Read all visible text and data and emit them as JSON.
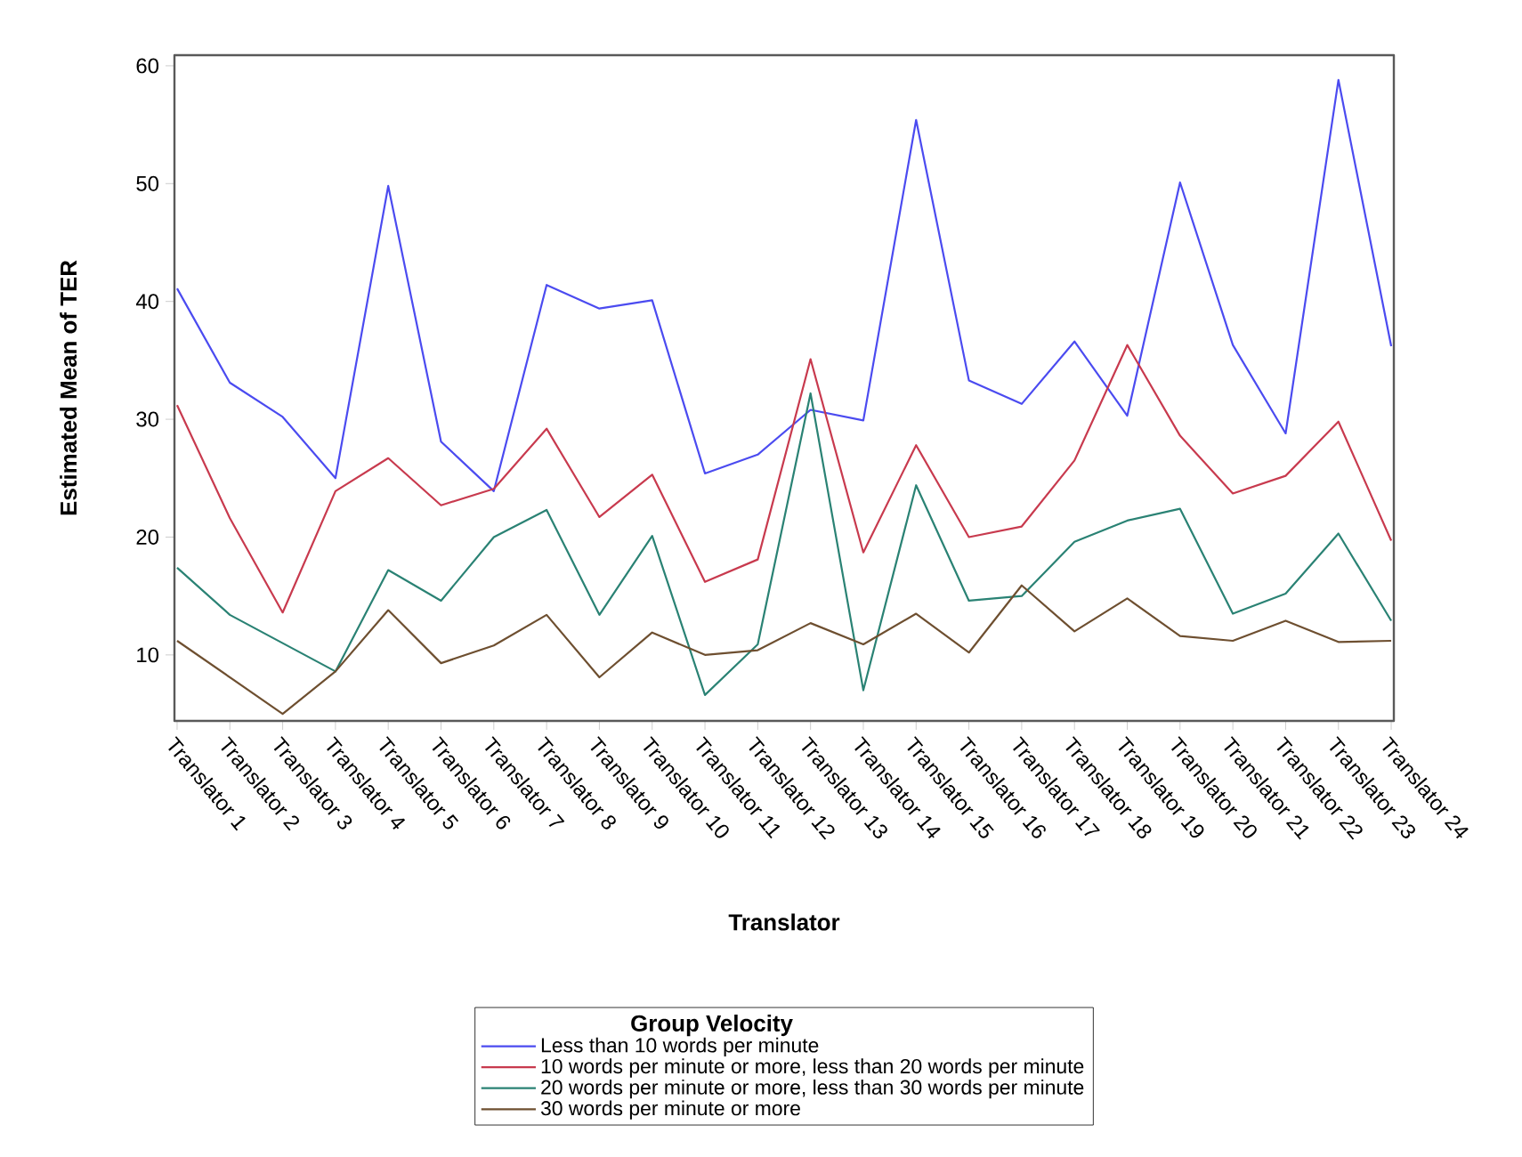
{
  "chart_data": {
    "type": "line",
    "xlabel": "Translator",
    "ylabel": "Estimated Mean of TER",
    "legend_title": "Group Velocity",
    "legend": "bottom",
    "grid": false,
    "marker": "none",
    "line_style": "solid",
    "categories": [
      "Translator 1",
      "Translator 2",
      "Translator 3",
      "Translator 4",
      "Translator 5",
      "Translator 6",
      "Translator 7",
      "Translator 8",
      "Translator 9",
      "Translator 10",
      "Translator 11",
      "Translator 12",
      "Translator 13",
      "Translator 14",
      "Translator 15",
      "Translator 16",
      "Translator 17",
      "Translator 18",
      "Translator 19",
      "Translator 20",
      "Translator 21",
      "Translator 22",
      "Translator 23",
      "Translator 24"
    ],
    "ylim": [
      4.4,
      60.9
    ],
    "yticks": [
      10,
      20,
      30,
      40,
      50,
      60
    ],
    "series": [
      {
        "name": "Less than 10 words per minute",
        "color": "#4b4bf0",
        "values": [
          41.1,
          33.1,
          30.2,
          25.0,
          49.8,
          28.1,
          23.9,
          41.4,
          39.4,
          40.1,
          25.4,
          27.0,
          30.8,
          29.9,
          55.4,
          33.3,
          31.3,
          36.6,
          30.3,
          50.1,
          36.3,
          28.8,
          58.8,
          36.2
        ]
      },
      {
        "name": "10 words per minute or more, less than 20 words per minute",
        "color": "#c83a4e",
        "values": [
          31.2,
          21.6,
          13.6,
          23.9,
          26.7,
          22.7,
          24.1,
          29.2,
          21.7,
          25.3,
          16.2,
          18.1,
          35.1,
          18.7,
          27.8,
          20.0,
          20.9,
          26.5,
          36.3,
          28.6,
          23.7,
          25.2,
          29.8,
          19.7
        ]
      },
      {
        "name": "20 words per minute or more, less than 30 words per minute",
        "color": "#2a8274",
        "values": [
          17.4,
          13.4,
          11.0,
          8.6,
          17.2,
          14.6,
          20.0,
          22.3,
          13.4,
          20.1,
          6.6,
          10.9,
          32.2,
          7.0,
          24.4,
          14.6,
          15.0,
          19.6,
          21.4,
          22.4,
          13.5,
          15.2,
          20.3,
          12.9
        ]
      },
      {
        "name": "30 words per minute or more",
        "color": "#6e4f30",
        "values": [
          11.2,
          8.1,
          5.0,
          8.6,
          13.8,
          9.3,
          10.8,
          13.4,
          8.1,
          11.9,
          10.0,
          10.4,
          12.7,
          10.9,
          13.5,
          10.2,
          15.9,
          12.0,
          14.8,
          11.6,
          11.2,
          12.9,
          11.1,
          11.2
        ]
      }
    ]
  }
}
